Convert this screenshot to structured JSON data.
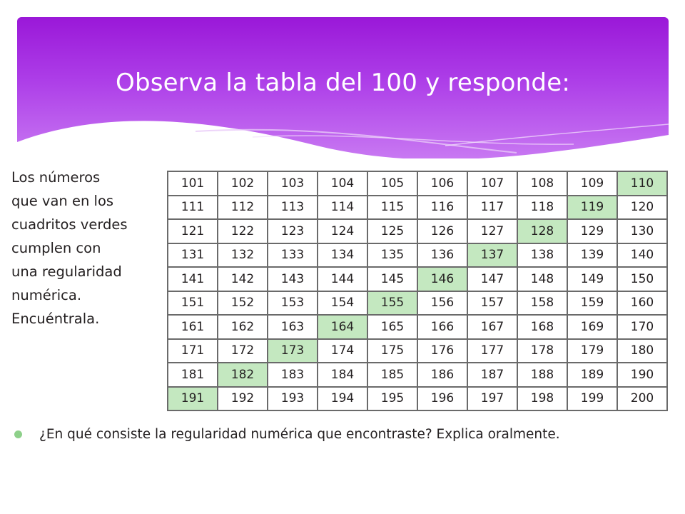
{
  "slide": {
    "title": "Observa la tabla del 100 y responde:",
    "side_text": "Los números\nque van en los\ncuadritos verdes\ncumplen con\nuna regularidad\nnumérica.\nEncuéntrala.",
    "question": "¿En qué consiste la regularidad numérica que encontraste? Explica oralmente.",
    "accent_color": "#a020e0",
    "highlight_color": "#c4e8c0",
    "bullet_color": "#8ed08a",
    "bullet_icon": "circle-bullet-icon"
  },
  "table": {
    "rows": [
      [
        "101",
        "102",
        "103",
        "104",
        "105",
        "106",
        "107",
        "108",
        "109",
        "110"
      ],
      [
        "111",
        "112",
        "113",
        "114",
        "115",
        "116",
        "117",
        "118",
        "119",
        "120"
      ],
      [
        "121",
        "122",
        "123",
        "124",
        "125",
        "126",
        "127",
        "128",
        "129",
        "130"
      ],
      [
        "131",
        "132",
        "133",
        "134",
        "135",
        "136",
        "137",
        "138",
        "139",
        "140"
      ],
      [
        "141",
        "142",
        "143",
        "144",
        "145",
        "146",
        "147",
        "148",
        "149",
        "150"
      ],
      [
        "151",
        "152",
        "153",
        "154",
        "155",
        "156",
        "157",
        "158",
        "159",
        "160"
      ],
      [
        "161",
        "162",
        "163",
        "164",
        "165",
        "166",
        "167",
        "168",
        "169",
        "170"
      ],
      [
        "171",
        "172",
        "173",
        "174",
        "175",
        "176",
        "177",
        "178",
        "179",
        "180"
      ],
      [
        "181",
        "182",
        "183",
        "184",
        "185",
        "186",
        "187",
        "188",
        "189",
        "190"
      ],
      [
        "191",
        "192",
        "193",
        "194",
        "195",
        "196",
        "197",
        "198",
        "199",
        "200"
      ]
    ],
    "highlighted": [
      "110",
      "119",
      "128",
      "137",
      "146",
      "155",
      "164",
      "173",
      "182",
      "191"
    ]
  }
}
